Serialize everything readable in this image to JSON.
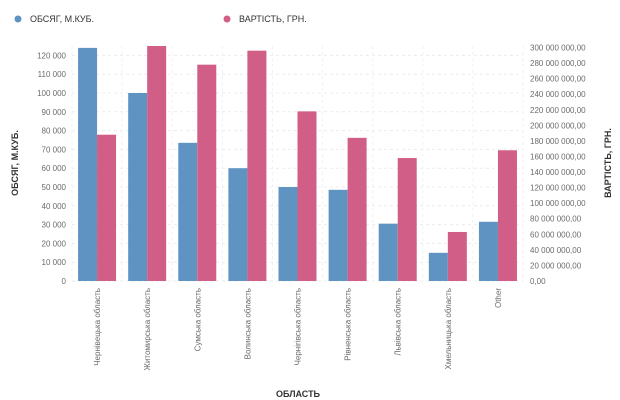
{
  "chart_data": {
    "type": "bar",
    "legend_position": "top-left",
    "grid": true,
    "xlabel": "ОБЛАСТЬ",
    "ylabel_left": "ОБСЯГ, М.КУБ.",
    "ylabel_right": "ВАРТІСТЬ, ГРН.",
    "categories": [
      "Чернівецька область",
      "Житомирська область",
      "Сумська область",
      "Волинська область",
      "Чернігівська область",
      "Рівненська область",
      "Львівська область",
      "Хмельницька область",
      "Other"
    ],
    "series": [
      {
        "name": "ОБСЯГ, М.КУБ.",
        "axis": "left",
        "color": "#5f94c2",
        "values": [
          124000,
          100000,
          73500,
          60000,
          50000,
          48500,
          30500,
          15000,
          31500
        ]
      },
      {
        "name": "ВАРТІСТЬ, ГРН.",
        "axis": "right",
        "color": "#d15e86",
        "values": [
          188000000,
          302000000,
          278000000,
          296000000,
          218000000,
          184000000,
          158000000,
          63000000,
          168000000
        ]
      }
    ],
    "ylim_left": [
      0,
      125000
    ],
    "yticks_left": [
      "0",
      "10 000",
      "20 000",
      "30 000",
      "40 000",
      "50 000",
      "60 000",
      "70 000",
      "80 000",
      "90 000",
      "100 000",
      "110 000",
      "120 000"
    ],
    "ytick_values_left": [
      0,
      10000,
      20000,
      30000,
      40000,
      50000,
      60000,
      70000,
      80000,
      90000,
      100000,
      110000,
      120000
    ],
    "ylim_right": [
      0,
      302000000
    ],
    "yticks_right": [
      "0,00",
      "20 000 000,00",
      "40 000 000,00",
      "60 000 000,00",
      "80 000 000,00",
      "100 000 000,00",
      "120 000 000,00",
      "140 000 000,00",
      "160 000 000,00",
      "180 000 000,00",
      "200 000 000,00",
      "220 000 000,00",
      "240 000 000,00",
      "260 000 000,00",
      "280 000 000,00",
      "300 000 000,00"
    ],
    "ytick_values_right": [
      0,
      20000000,
      40000000,
      60000000,
      80000000,
      100000000,
      120000000,
      140000000,
      160000000,
      180000000,
      200000000,
      220000000,
      240000000,
      260000000,
      280000000,
      300000000
    ]
  }
}
